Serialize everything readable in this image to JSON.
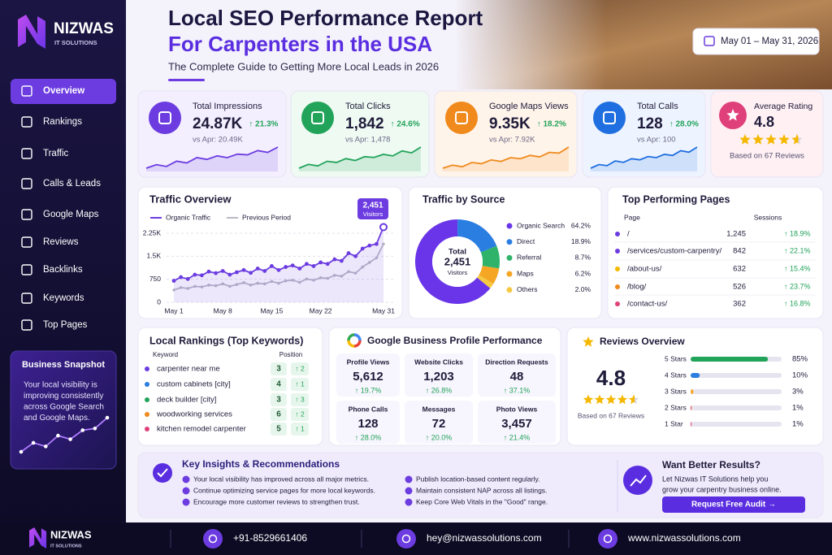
{
  "brand": {
    "name": "NIZWAS",
    "tagline": "IT SOLUTIONS"
  },
  "header": {
    "title_line1": "Local SEO Performance Report",
    "title_line2": "For Carpenters in the USA",
    "subtitle": "The Complete Guide to Getting More Local Leads in 2026",
    "date_range": "May 01 – May 31, 2026"
  },
  "nav": [
    "Overview",
    "Rankings",
    "Traffic",
    "Calls & Leads",
    "Google Maps",
    "Reviews",
    "Backlinks",
    "Keywords",
    "Top Pages"
  ],
  "snapshot": {
    "title": "Business Snapshot",
    "lines": [
      "Your local visibility is",
      "improving consistently",
      "across Google Search",
      "and Google Maps."
    ],
    "trend": [
      1,
      2,
      1.6,
      2.8,
      2.4,
      3.4,
      3.6,
      4.8
    ]
  },
  "kpis": [
    {
      "label": "Total Impressions",
      "value": "24.87K",
      "change": "↑ 21.3%",
      "compare": "vs Apr: 20.49K",
      "color": "#6c3ce0",
      "bg": "#f3efff",
      "trend": [
        3,
        4,
        3.5,
        5,
        4.5,
        6,
        5.5,
        6.5,
        6,
        7,
        6.8,
        8,
        7.5,
        9
      ]
    },
    {
      "label": "Total Clicks",
      "value": "1,842",
      "change": "↑ 24.6%",
      "compare": "vs Apr: 1,478",
      "color": "#22a35a",
      "bg": "#eefaf2",
      "trend": [
        3,
        4,
        3.6,
        4.8,
        4.5,
        5.5,
        5,
        6,
        5.8,
        6.6,
        6.2,
        7.5,
        7,
        8.5
      ]
    },
    {
      "label": "Google Maps Views",
      "value": "9.35K",
      "change": "↑ 18.2%",
      "compare": "vs Apr: 7.92K",
      "color": "#f08a1c",
      "bg": "#fff4ea",
      "trend": [
        3,
        3.8,
        3.4,
        4.5,
        4.2,
        5.2,
        4.8,
        5.8,
        5.5,
        6.4,
        6,
        7.2,
        7,
        8.6
      ]
    },
    {
      "label": "Total Calls",
      "value": "128",
      "change": "↑ 28.0%",
      "compare": "vs Apr: 100",
      "color": "#1f6fe0",
      "bg": "#eef4ff",
      "trend": [
        3,
        4,
        3.7,
        5,
        4.6,
        5.6,
        5.3,
        6.2,
        5.9,
        6.8,
        6.5,
        7.8,
        7.4,
        8.8
      ]
    }
  ],
  "rating_card": {
    "label": "Average Rating",
    "value": "4.8",
    "note": "Based on 67 Reviews"
  },
  "chart_data": [
    {
      "type": "line",
      "title": "Traffic Overview",
      "categories": [
        "May 1",
        null,
        null,
        null,
        null,
        null,
        null,
        "May 8",
        null,
        null,
        null,
        null,
        null,
        null,
        "May 15",
        null,
        null,
        null,
        null,
        null,
        null,
        "May 22",
        null,
        null,
        null,
        null,
        null,
        null,
        null,
        null,
        "May 31"
      ],
      "series": [
        {
          "name": "Organic Traffic",
          "color": "#6c3ce0",
          "values": [
            700,
            820,
            760,
            900,
            880,
            1000,
            950,
            1020,
            900,
            980,
            1050,
            960,
            1100,
            1020,
            1180,
            1050,
            1150,
            1200,
            1100,
            1250,
            1180,
            1300,
            1250,
            1400,
            1350,
            1600,
            1500,
            1750,
            1850,
            1900,
            2451
          ]
        },
        {
          "name": "Previous Period",
          "color": "#b9b9c6",
          "values": [
            400,
            480,
            450,
            520,
            500,
            560,
            540,
            600,
            520,
            580,
            640,
            560,
            620,
            600,
            680,
            620,
            700,
            720,
            650,
            760,
            720,
            800,
            780,
            880,
            850,
            1000,
            950,
            1150,
            1300,
            1450,
            1900
          ]
        }
      ],
      "ylim": [
        0,
        2500
      ],
      "yticks": [
        0,
        750,
        {
          "value": 1500,
          "label": "1.5K"
        },
        {
          "value": 2250,
          "label": "2.25K"
        }
      ],
      "grid": true,
      "annotation": {
        "value_label": "2,451",
        "text": "Visitors"
      }
    },
    {
      "type": "pie",
      "title": "Traffic by Source",
      "categories": [
        "Organic Search",
        "Direct",
        "Referral",
        "Maps",
        "Others"
      ],
      "values": [
        64.2,
        18.9,
        8.7,
        6.2,
        2.0
      ],
      "value_labels": [
        "64.2%",
        "18.9%",
        "8.7%",
        "6.2%",
        "2.0%"
      ],
      "colors": [
        "#6a35e8",
        "#2a7de1",
        "#2fb36a",
        "#f5a623",
        "#f5c842"
      ],
      "center_label": "Total",
      "center_value": "2,451",
      "center_unit": "Visitors"
    }
  ],
  "top_pages": {
    "title": "Top Performing Pages",
    "columns": [
      "Page",
      "Sessions"
    ],
    "rows": [
      {
        "page": "/",
        "sessions": "1,245",
        "change": "↑ 18.9%",
        "color": "#6c3ce0"
      },
      {
        "page": "/services/custom-carpentry/",
        "sessions": "842",
        "change": "↑ 22.1%",
        "color": "#6c3ce0"
      },
      {
        "page": "/about-us/",
        "sessions": "632",
        "change": "↑ 15.4%",
        "color": "#f5b800"
      },
      {
        "page": "/blog/",
        "sessions": "526",
        "change": "↑ 23.7%",
        "color": "#f08a1c"
      },
      {
        "page": "/contact-us/",
        "sessions": "362",
        "change": "↑ 16.8%",
        "color": "#e0407a"
      }
    ]
  },
  "local_rankings": {
    "title": "Local Rankings (Top Keywords)",
    "columns": [
      "Keyword",
      "Position"
    ],
    "rows": [
      {
        "keyword": "carpenter near me",
        "position": "3",
        "change": "↑ 2",
        "color": "#6c3ce0"
      },
      {
        "keyword": "custom cabinets [city]",
        "position": "4",
        "change": "↑ 1",
        "color": "#2a7de1"
      },
      {
        "keyword": "deck builder [city]",
        "position": "3",
        "change": "↑ 3",
        "color": "#22a35a"
      },
      {
        "keyword": "woodworking services",
        "position": "6",
        "change": "↑ 2",
        "color": "#f08a1c"
      },
      {
        "keyword": "kitchen remodel carpenter",
        "position": "5",
        "change": "↑ 1",
        "color": "#e0407a"
      }
    ]
  },
  "gbp": {
    "title": "Google Business Profile Performance",
    "metrics": [
      {
        "label": "Profile Views",
        "value": "5,612",
        "change": "↑ 19.7%"
      },
      {
        "label": "Website Clicks",
        "value": "1,203",
        "change": "↑ 26.8%"
      },
      {
        "label": "Direction Requests",
        "value": "48",
        "change": "↑ 37.1%"
      },
      {
        "label": "Phone Calls",
        "value": "128",
        "change": "↑ 28.0%"
      },
      {
        "label": "Messages",
        "value": "72",
        "change": "↑ 20.0%"
      },
      {
        "label": "Photo Views",
        "value": "3,457",
        "change": "↑ 21.4%"
      }
    ]
  },
  "reviews": {
    "title": "Reviews Overview",
    "rating": "4.8",
    "note": "Based on 67 Reviews",
    "xlim": [
      0,
      100
    ],
    "rows": [
      {
        "label": "5 Stars",
        "value": 85,
        "value_label": "85%",
        "color": "#22a35a"
      },
      {
        "label": "4 Stars",
        "value": 10,
        "value_label": "10%",
        "color": "#2a7de1"
      },
      {
        "label": "3 Stars",
        "value": 3,
        "value_label": "3%",
        "color": "#f5a623"
      },
      {
        "label": "2 Stars",
        "value": 1,
        "value_label": "1%",
        "color": "#e04040"
      },
      {
        "label": "1 Star",
        "value": 1,
        "value_label": "1%",
        "color": "#e0407a"
      }
    ]
  },
  "insights": {
    "title": "Key Insights & Recommendations",
    "left": [
      "Your local visibility has improved across all major metrics.",
      "Continue optimizing service pages for more local keywords.",
      "Encourage more customer reviews to strengthen trust."
    ],
    "right": [
      "Publish location-based content regularly.",
      "Maintain consistent NAP across all listings.",
      "Keep Core Web Vitals in the \"Good\" range."
    ]
  },
  "cta": {
    "title": "Want Better Results?",
    "lines": [
      "Let Nizwas IT Solutions help you",
      "grow your carpentry business online."
    ],
    "button": "Request Free Audit →"
  },
  "footer": {
    "phone": "+91-8529661406",
    "email": "hey@nizwassolutions.com",
    "website": "www.nizwassolutions.com"
  }
}
